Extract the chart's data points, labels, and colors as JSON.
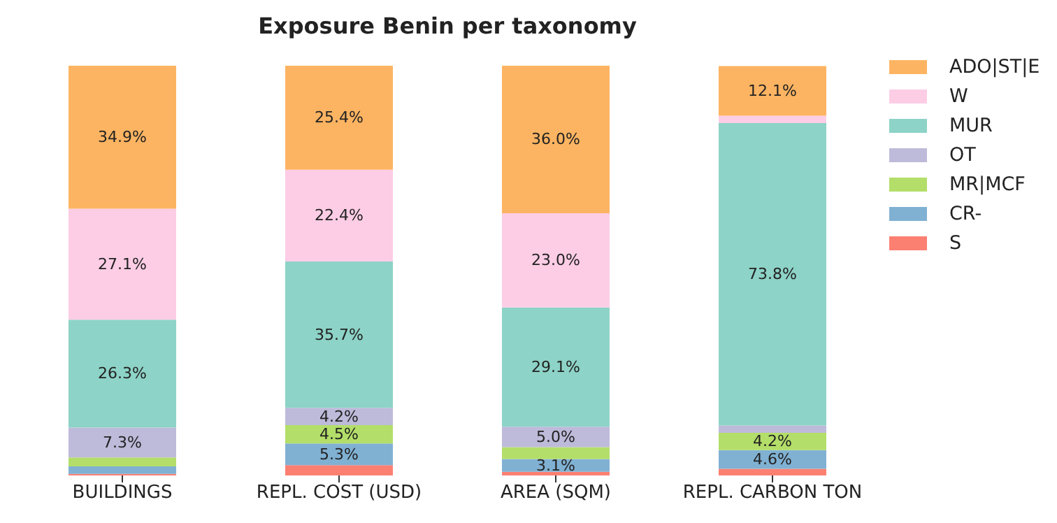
{
  "chart_data": {
    "type": "bar",
    "title": "Exposure Benin per taxonomy",
    "stacked": true,
    "legend": "right",
    "tick_labels": "x",
    "categories": [
      "BUILDINGS",
      "REPL. COST (USD)",
      "AREA (SQM)",
      "REPL. CARBON TON"
    ],
    "ylim": [
      0,
      100
    ],
    "series": [
      {
        "name": "S",
        "color": "#fb8072",
        "values": [
          0.4,
          2.5,
          0.9,
          1.6
        ],
        "value_labels": [
          null,
          null,
          null,
          null
        ]
      },
      {
        "name": "CR-",
        "color": "#80b1d3",
        "values": [
          1.8,
          5.3,
          3.1,
          4.6
        ],
        "value_labels": [
          null,
          "5.3%",
          "3.1%",
          "4.6%"
        ]
      },
      {
        "name": "MR|MCF",
        "color": "#b3de69",
        "values": [
          2.2,
          4.5,
          2.9,
          4.2
        ],
        "value_labels": [
          null,
          "4.5%",
          null,
          "4.2%"
        ]
      },
      {
        "name": "OT",
        "color": "#bebada",
        "values": [
          7.3,
          4.2,
          5.0,
          1.8
        ],
        "value_labels": [
          "7.3%",
          "4.2%",
          "5.0%",
          null
        ]
      },
      {
        "name": "MUR",
        "color": "#8dd3c7",
        "values": [
          26.3,
          35.7,
          29.1,
          73.8
        ],
        "value_labels": [
          "26.3%",
          "35.7%",
          "29.1%",
          "73.8%"
        ]
      },
      {
        "name": "W",
        "color": "#fccde5",
        "values": [
          27.1,
          22.4,
          23.0,
          1.8
        ],
        "value_labels": [
          "27.1%",
          "22.4%",
          "23.0%",
          null
        ]
      },
      {
        "name": "ADO|ST|E",
        "color": "#fdb462",
        "values": [
          34.9,
          25.4,
          36.0,
          12.1
        ],
        "value_labels": [
          "34.9%",
          "25.4%",
          "36.0%",
          "12.1%"
        ]
      }
    ]
  }
}
